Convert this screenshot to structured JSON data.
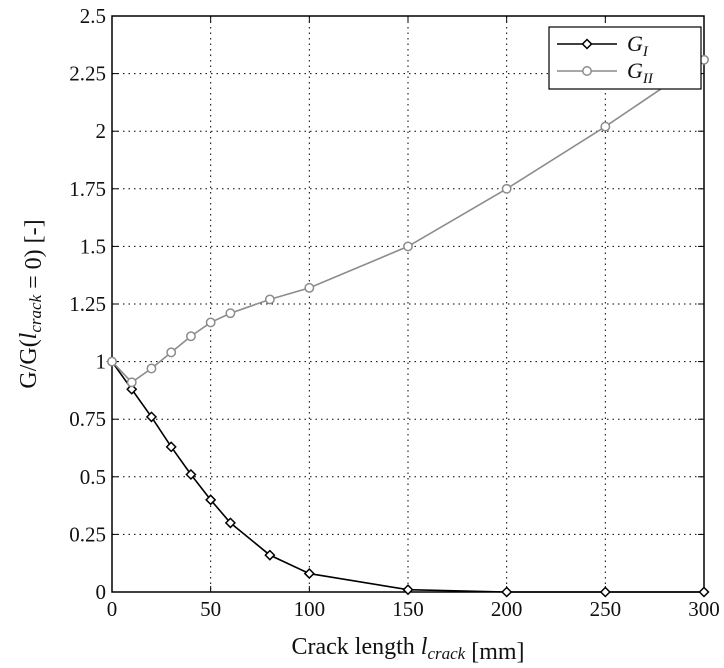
{
  "chart_data": {
    "type": "line",
    "title": "",
    "xlabel": "Crack length l_crack [mm]",
    "ylabel": "G/G(l_crack = 0) [-]",
    "xlim": [
      0,
      300
    ],
    "ylim": [
      0,
      2.5
    ],
    "xticks": [
      "0",
      "50",
      "100",
      "150",
      "200",
      "250",
      "300"
    ],
    "yticks": [
      "0",
      "0.25",
      "0.5",
      "0.75",
      "1",
      "1.25",
      "1.5",
      "1.75",
      "2",
      "2.25",
      "2.5"
    ],
    "grid": true,
    "legend_position": "top-right",
    "series": [
      {
        "name": "G_I",
        "color": "#000000",
        "marker": "diamond",
        "x": [
          0,
          10,
          20,
          30,
          40,
          50,
          60,
          80,
          100,
          150,
          200,
          250,
          300
        ],
        "y": [
          1.0,
          0.88,
          0.76,
          0.63,
          0.51,
          0.4,
          0.3,
          0.16,
          0.08,
          0.01,
          0.0,
          0.0,
          0.0
        ]
      },
      {
        "name": "G_II",
        "color": "#8c8c8c",
        "marker": "circle",
        "x": [
          0,
          10,
          20,
          30,
          40,
          50,
          60,
          80,
          100,
          150,
          200,
          250,
          300
        ],
        "y": [
          1.0,
          0.91,
          0.97,
          1.04,
          1.11,
          1.17,
          1.21,
          1.27,
          1.32,
          1.5,
          1.75,
          2.02,
          2.31
        ]
      }
    ]
  }
}
